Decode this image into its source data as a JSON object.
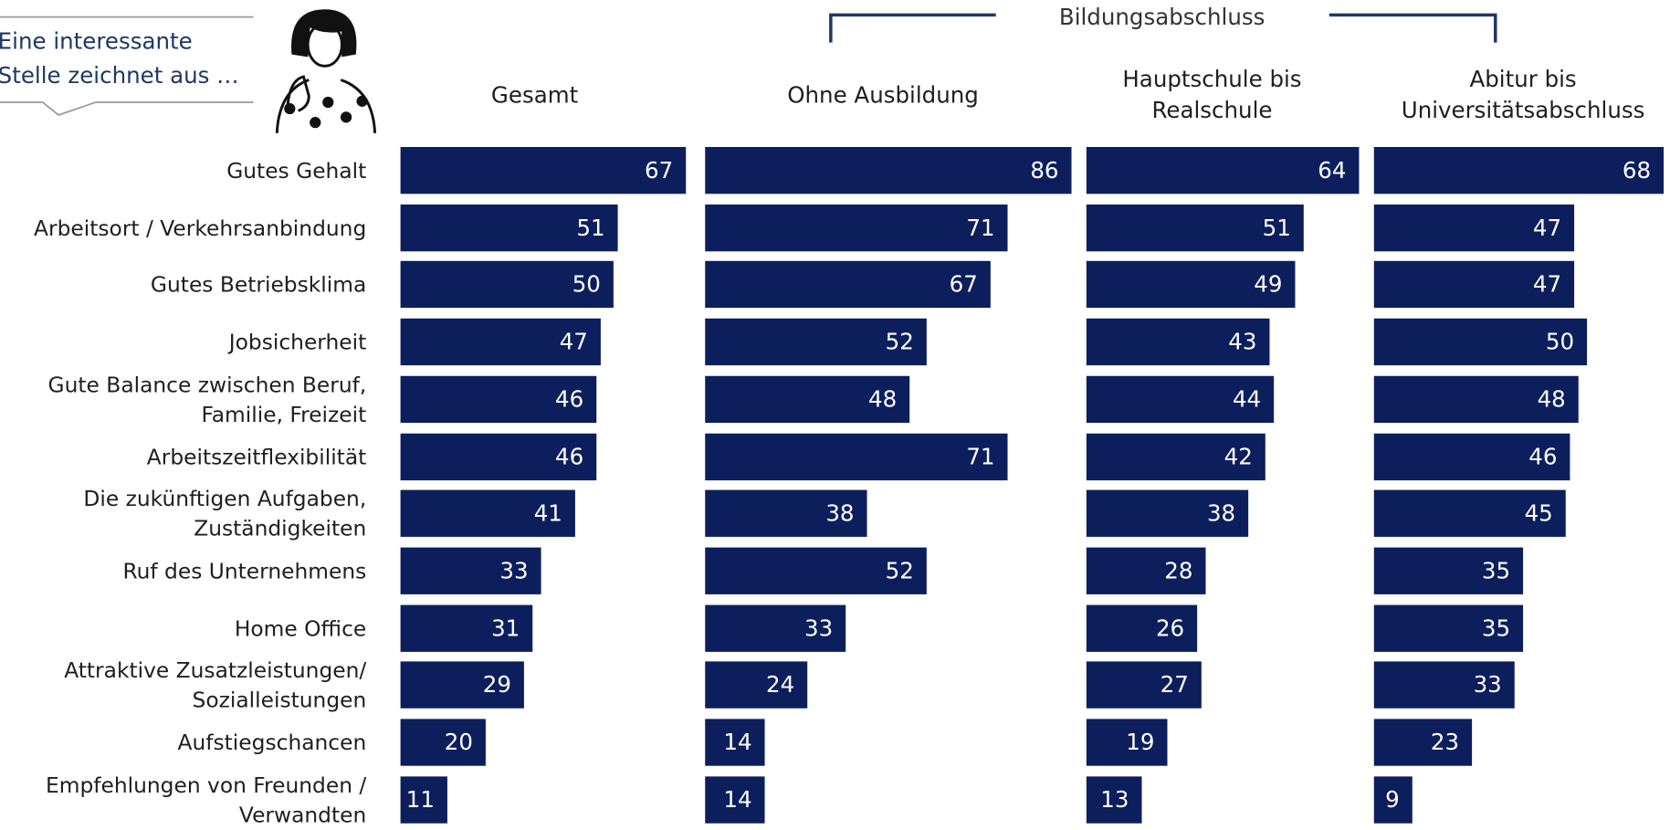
{
  "callout": {
    "text": "Eine interessante\nStelle zeichnet aus …"
  },
  "chart_data": {
    "type": "bar",
    "orientation": "horizontal",
    "layout": "panels",
    "group_label": "Bildungsabschluss",
    "categories": [
      "Gutes Gehalt",
      "Arbeitsort / Verkehrsanbindung",
      "Gutes Betriebsklima",
      "Jobsicherheit",
      "Gute Balance zwischen Beruf,\nFamilie, Freizeit",
      "Arbeitszeitflexibilität",
      "Die zukünftigen Aufgaben,\nZuständigkeiten",
      "Ruf des Unternehmens",
      "Home Office",
      "Attraktive Zusatzleistungen/\nSozialleistungen",
      "Aufstiegschancen",
      "Empfehlungen von Freunden /\nVerwandten"
    ],
    "series": [
      {
        "name": "Gesamt",
        "color": "#0c1f5c",
        "values": [
          67,
          51,
          50,
          47,
          46,
          46,
          41,
          33,
          31,
          29,
          20,
          11
        ]
      },
      {
        "name": "Ohne Ausbildung",
        "color": "#0c1f5c",
        "values": [
          86,
          71,
          67,
          52,
          48,
          71,
          38,
          52,
          33,
          24,
          14,
          14
        ]
      },
      {
        "name": "Hauptschule bis\nRealschule",
        "color": "#0c1f5c",
        "values": [
          64,
          51,
          49,
          43,
          44,
          42,
          38,
          28,
          26,
          27,
          19,
          13
        ]
      },
      {
        "name": "Abitur bis\nUniversitätsabschluss",
        "color": "#0c1f5c",
        "values": [
          68,
          47,
          47,
          50,
          48,
          46,
          45,
          35,
          35,
          33,
          23,
          9
        ]
      }
    ]
  }
}
